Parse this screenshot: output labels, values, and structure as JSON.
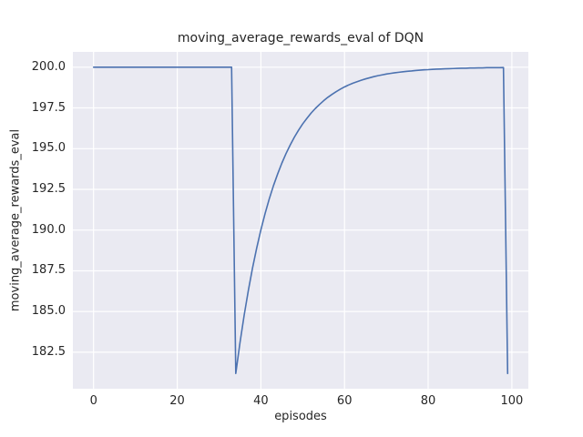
{
  "colors": {
    "figure_bg": "#ffffff",
    "axes_bg": "#eaeaf2",
    "grid": "#ffffff",
    "line": "#4c72b0",
    "text": "#262626"
  },
  "chart_data": {
    "type": "line",
    "title": "moving_average_rewards_eval of DQN",
    "xlabel": "episodes",
    "ylabel": "moving_average_rewards_eval",
    "xlim": [
      -4.95,
      103.95
    ],
    "ylim": [
      180.26,
      200.94
    ],
    "x_ticks": [
      0,
      20,
      40,
      60,
      80,
      100
    ],
    "x_tick_labels": [
      "0",
      "20",
      "40",
      "60",
      "80",
      "100"
    ],
    "y_ticks": [
      182.5,
      185.0,
      187.5,
      190.0,
      192.5,
      195.0,
      197.5,
      200.0
    ],
    "y_tick_labels": [
      "182.5",
      "185.0",
      "187.5",
      "190.0",
      "192.5",
      "195.0",
      "197.5",
      "200.0"
    ],
    "grid": true,
    "legend_position": "none",
    "series": [
      {
        "name": "moving_average_rewards_eval",
        "x": [
          0,
          1,
          2,
          3,
          4,
          5,
          6,
          7,
          8,
          9,
          10,
          11,
          12,
          13,
          14,
          15,
          16,
          17,
          18,
          19,
          20,
          21,
          22,
          23,
          24,
          25,
          26,
          27,
          28,
          29,
          30,
          31,
          32,
          33,
          34,
          35,
          36,
          37,
          38,
          39,
          40,
          41,
          42,
          43,
          44,
          45,
          46,
          47,
          48,
          49,
          50,
          51,
          52,
          53,
          54,
          55,
          56,
          57,
          58,
          59,
          60,
          61,
          62,
          63,
          64,
          65,
          66,
          67,
          68,
          69,
          70,
          71,
          72,
          73,
          74,
          75,
          76,
          77,
          78,
          79,
          80,
          81,
          82,
          83,
          84,
          85,
          86,
          87,
          88,
          89,
          90,
          91,
          92,
          93,
          94,
          95,
          96,
          97,
          98,
          99
        ],
        "y": [
          200,
          200,
          200,
          200,
          200,
          200,
          200,
          200,
          200,
          200,
          200,
          200,
          200,
          200,
          200,
          200,
          200,
          200,
          200,
          200,
          200,
          200,
          200,
          200,
          200,
          200,
          200,
          200,
          200,
          200,
          200,
          200,
          200,
          200,
          181.2,
          183.08,
          184.77,
          186.29,
          187.67,
          188.9,
          190.01,
          191.01,
          191.91,
          192.72,
          193.44,
          194.1,
          194.69,
          195.22,
          195.7,
          196.13,
          196.52,
          196.86,
          197.18,
          197.46,
          197.71,
          197.94,
          198.15,
          198.33,
          198.5,
          198.65,
          198.79,
          198.91,
          199.02,
          199.11,
          199.2,
          199.28,
          199.35,
          199.42,
          199.48,
          199.53,
          199.58,
          199.62,
          199.66,
          199.69,
          199.72,
          199.75,
          199.77,
          199.8,
          199.82,
          199.84,
          199.85,
          199.87,
          199.88,
          199.89,
          199.9,
          199.91,
          199.92,
          199.93,
          199.94,
          199.94,
          199.95,
          199.95,
          199.96,
          199.96,
          199.97,
          199.97,
          199.97,
          199.97,
          199.98,
          181.2
        ]
      }
    ]
  }
}
